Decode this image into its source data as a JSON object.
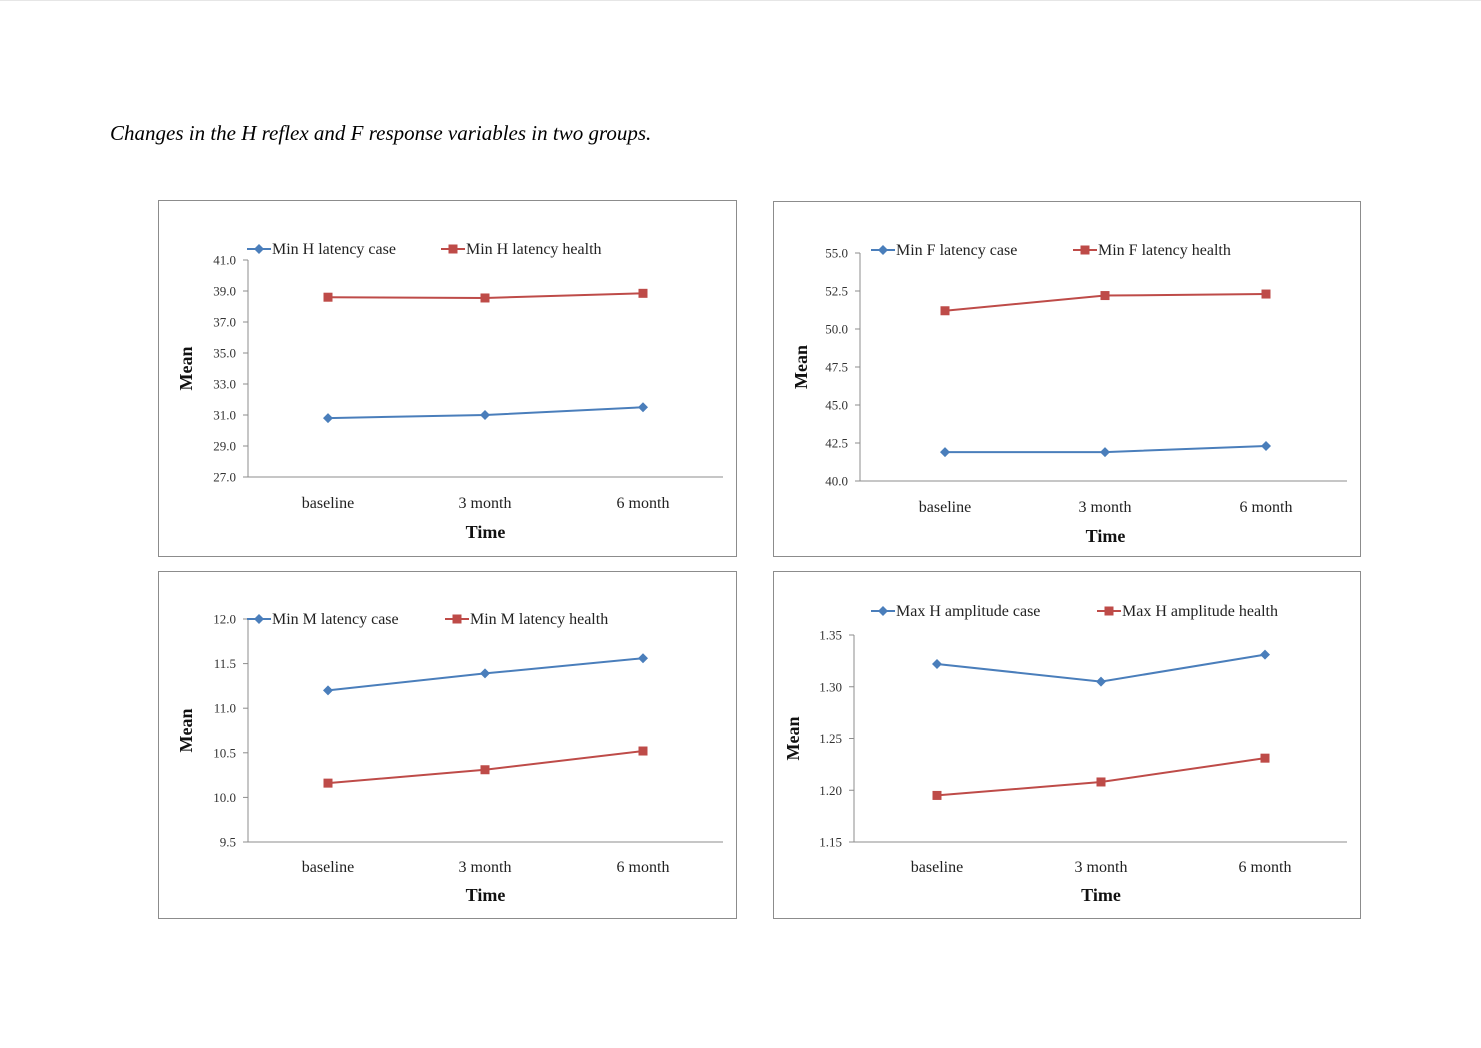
{
  "caption": "Changes in the H reflex and F response variables in two groups.",
  "chart_data": [
    {
      "type": "line",
      "categories": [
        "baseline",
        "3 month",
        "6 month"
      ],
      "series": [
        {
          "name": "Min H latency case",
          "color": "#4a7ebb",
          "marker": "diamond",
          "values": [
            30.8,
            31.0,
            31.5
          ]
        },
        {
          "name": "Min H latency health",
          "color": "#be4b48",
          "marker": "square",
          "values": [
            38.6,
            38.55,
            38.85
          ]
        }
      ],
      "yticks": [
        27.0,
        29.0,
        31.0,
        33.0,
        35.0,
        37.0,
        39.0,
        41.0
      ],
      "tick_decimals": 1,
      "ylim": [
        27.0,
        41.0
      ],
      "xlabel": "Time",
      "ylabel": "Mean"
    },
    {
      "type": "line",
      "categories": [
        "baseline",
        "3 month",
        "6 month"
      ],
      "series": [
        {
          "name": "Min F latency case",
          "color": "#4a7ebb",
          "marker": "diamond",
          "values": [
            41.9,
            41.9,
            42.3
          ]
        },
        {
          "name": "Min F latency health",
          "color": "#be4b48",
          "marker": "square",
          "values": [
            51.2,
            52.2,
            52.3
          ]
        }
      ],
      "yticks": [
        40.0,
        42.5,
        45.0,
        47.5,
        50.0,
        52.5,
        55.0
      ],
      "tick_decimals": 1,
      "ylim": [
        40.0,
        55.0
      ],
      "xlabel": "Time",
      "ylabel": "Mean"
    },
    {
      "type": "line",
      "categories": [
        "baseline",
        "3 month",
        "6 month"
      ],
      "series": [
        {
          "name": "Min M latency case",
          "color": "#4a7ebb",
          "marker": "diamond",
          "values": [
            11.2,
            11.39,
            11.56
          ]
        },
        {
          "name": "Min M latency health",
          "color": "#be4b48",
          "marker": "square",
          "values": [
            10.16,
            10.31,
            10.52
          ]
        }
      ],
      "yticks": [
        9.5,
        10.0,
        10.5,
        11.0,
        11.5,
        12.0
      ],
      "tick_decimals": 1,
      "ylim": [
        9.5,
        12.0
      ],
      "xlabel": "Time",
      "ylabel": "Mean"
    },
    {
      "type": "line",
      "categories": [
        "baseline",
        "3 month",
        "6 month"
      ],
      "series": [
        {
          "name": "Max H amplitude case",
          "color": "#4a7ebb",
          "marker": "diamond",
          "values": [
            1.322,
            1.305,
            1.331
          ]
        },
        {
          "name": "Max H amplitude health",
          "color": "#be4b48",
          "marker": "square",
          "values": [
            1.195,
            1.208,
            1.231
          ]
        }
      ],
      "yticks": [
        1.15,
        1.2,
        1.25,
        1.3,
        1.35
      ],
      "tick_decimals": 2,
      "ylim": [
        1.15,
        1.35
      ],
      "xlabel": "Time",
      "ylabel": "Mean"
    }
  ]
}
